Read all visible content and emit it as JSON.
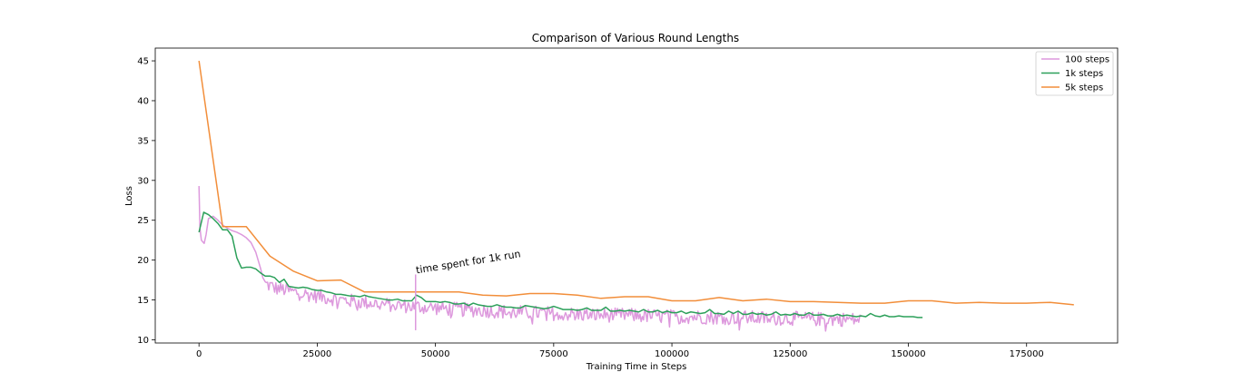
{
  "chart_data": {
    "type": "line",
    "title": "Comparison of Various Round Lengths",
    "xlabel": "Training Time in Steps",
    "ylabel": "Loss",
    "xlim": [
      -9250,
      194250
    ],
    "ylim": [
      9.6,
      46.6
    ],
    "xticks": [
      0,
      25000,
      50000,
      75000,
      100000,
      125000,
      150000,
      175000
    ],
    "yticks": [
      10,
      15,
      20,
      25,
      30,
      35,
      40,
      45
    ],
    "legend_position": "top-right",
    "series": [
      {
        "name": "100 steps",
        "color": "#dd99dd",
        "noisy": true,
        "noise_from": 14000,
        "noise_step": 250,
        "x": [
          0,
          200,
          500,
          800,
          1100,
          1500,
          2000,
          3000,
          4000,
          5000,
          6000,
          7000,
          8000,
          9000,
          10000,
          11000,
          12000,
          13000,
          13500,
          14000,
          15000,
          16000,
          18000,
          20000,
          25000,
          30000,
          35000,
          40000,
          45000,
          50000,
          55000,
          60000,
          65000,
          70000,
          75000,
          80000,
          85000,
          90000,
          95000,
          100000,
          105000,
          110000,
          115000,
          120000,
          125000,
          130000,
          135000,
          140000
        ],
        "y": [
          29.3,
          24.0,
          22.5,
          22.3,
          22.1,
          23.2,
          25.2,
          25.5,
          25.0,
          24.4,
          24.0,
          23.7,
          23.5,
          23.2,
          22.8,
          22.2,
          21.0,
          19.0,
          17.8,
          17.0,
          16.8,
          16.5,
          16.3,
          16.0,
          15.5,
          15.0,
          14.7,
          14.4,
          14.2,
          14.0,
          13.8,
          13.7,
          13.5,
          13.4,
          13.3,
          13.2,
          13.1,
          13.1,
          13.0,
          12.9,
          12.9,
          12.8,
          12.8,
          12.7,
          12.7,
          12.6,
          12.6,
          12.5
        ]
      },
      {
        "name": "1k steps",
        "color": "#2ca05a",
        "x": [
          0,
          1000,
          2000,
          3000,
          4000,
          5000,
          6000,
          7000,
          8000,
          9000,
          10000,
          11000,
          12000,
          13000,
          14000,
          15000,
          16000,
          17000,
          18000,
          19000,
          20000,
          21000,
          22000,
          23000,
          24000,
          25000,
          26000,
          27000,
          28000,
          29000,
          30000,
          31000,
          32000,
          33000,
          34000,
          35000,
          36000,
          37000,
          38000,
          39000,
          40000,
          41000,
          42000,
          43000,
          44000,
          45000,
          46000,
          47000,
          48000,
          49000,
          50000,
          51000,
          52000,
          53000,
          54000,
          55000,
          56000,
          57000,
          58000,
          59000,
          60000,
          61000,
          62000,
          63000,
          64000,
          65000,
          66000,
          67000,
          68000,
          69000,
          70000,
          71000,
          72000,
          73000,
          74000,
          75000,
          76000,
          77000,
          78000,
          79000,
          80000,
          81000,
          82000,
          83000,
          84000,
          85000,
          86000,
          87000,
          88000,
          89000,
          90000,
          91000,
          92000,
          93000,
          94000,
          95000,
          96000,
          97000,
          98000,
          99000,
          100000,
          101000,
          102000,
          103000,
          104000,
          105000,
          106000,
          107000,
          108000,
          109000,
          110000,
          111000,
          112000,
          113000,
          114000,
          115000,
          116000,
          117000,
          118000,
          119000,
          120000,
          121000,
          122000,
          123000,
          124000,
          125000,
          126000,
          127000,
          128000,
          129000,
          130000,
          131000,
          132000,
          133000,
          134000,
          135000,
          136000,
          137000,
          138000,
          139000,
          140000,
          141000,
          142000,
          143000,
          144000,
          145000,
          146000,
          147000,
          148000,
          149000,
          150000,
          151000,
          152000,
          153000
        ],
        "y": [
          23.5,
          26.0,
          25.7,
          25.2,
          24.6,
          23.8,
          23.8,
          23.0,
          20.3,
          19.0,
          19.1,
          19.1,
          18.9,
          18.4,
          18.0,
          18.0,
          17.8,
          17.2,
          17.6,
          16.7,
          16.6,
          16.5,
          16.6,
          16.5,
          16.3,
          16.2,
          16.2,
          16.0,
          15.9,
          15.7,
          15.7,
          15.6,
          15.5,
          15.5,
          15.4,
          15.6,
          15.4,
          15.3,
          15.2,
          15.1,
          15.0,
          15.0,
          15.1,
          14.9,
          14.9,
          14.9,
          15.6,
          15.3,
          14.8,
          14.8,
          14.8,
          14.7,
          14.8,
          14.7,
          14.5,
          14.5,
          14.6,
          14.3,
          14.6,
          14.4,
          14.3,
          14.2,
          14.2,
          14.4,
          14.2,
          14.1,
          14.1,
          14.0,
          14.0,
          14.3,
          14.2,
          14.1,
          14.0,
          13.9,
          14.0,
          14.2,
          14.0,
          13.8,
          13.8,
          13.8,
          13.7,
          13.8,
          14.0,
          13.7,
          13.7,
          13.7,
          14.1,
          13.6,
          13.6,
          13.7,
          13.6,
          13.7,
          13.6,
          13.5,
          13.8,
          13.5,
          13.5,
          13.7,
          13.4,
          13.6,
          13.4,
          13.4,
          13.6,
          13.3,
          13.5,
          13.4,
          13.3,
          13.4,
          13.8,
          13.3,
          13.3,
          13.2,
          13.6,
          13.3,
          13.6,
          13.2,
          13.2,
          13.4,
          13.2,
          13.3,
          13.1,
          13.2,
          13.5,
          13.1,
          13.2,
          13.1,
          13.3,
          13.1,
          13.1,
          13.4,
          13.1,
          13.1,
          13.2,
          13.0,
          13.0,
          13.2,
          13.0,
          13.1,
          13.0,
          12.9,
          13.0,
          12.9,
          13.3,
          13.0,
          12.9,
          13.1,
          12.9,
          12.9,
          13.0,
          12.9,
          12.9,
          12.9,
          12.8,
          12.8
        ]
      },
      {
        "name": "5k steps",
        "color": "#f28e3a",
        "x": [
          0,
          5000,
          10000,
          15000,
          20000,
          25000,
          30000,
          35000,
          40000,
          45000,
          50000,
          55000,
          60000,
          65000,
          70000,
          75000,
          80000,
          85000,
          90000,
          95000,
          100000,
          105000,
          110000,
          115000,
          120000,
          125000,
          130000,
          135000,
          140000,
          145000,
          150000,
          155000,
          160000,
          165000,
          170000,
          175000,
          180000,
          185000
        ],
        "y": [
          45.0,
          24.2,
          24.2,
          20.5,
          18.6,
          17.4,
          17.5,
          16.0,
          16.0,
          16.0,
          16.0,
          16.0,
          15.6,
          15.5,
          15.8,
          15.8,
          15.6,
          15.2,
          15.4,
          15.4,
          14.9,
          14.9,
          15.3,
          14.9,
          15.1,
          14.8,
          14.8,
          14.7,
          14.6,
          14.6,
          14.9,
          14.9,
          14.6,
          14.7,
          14.6,
          14.6,
          14.7,
          14.4
        ]
      }
    ],
    "annotation": {
      "text": "time spent for 1k run",
      "x": 45800,
      "y_from": 11.2,
      "y_to": 18.2,
      "color": "#dd99dd"
    }
  }
}
